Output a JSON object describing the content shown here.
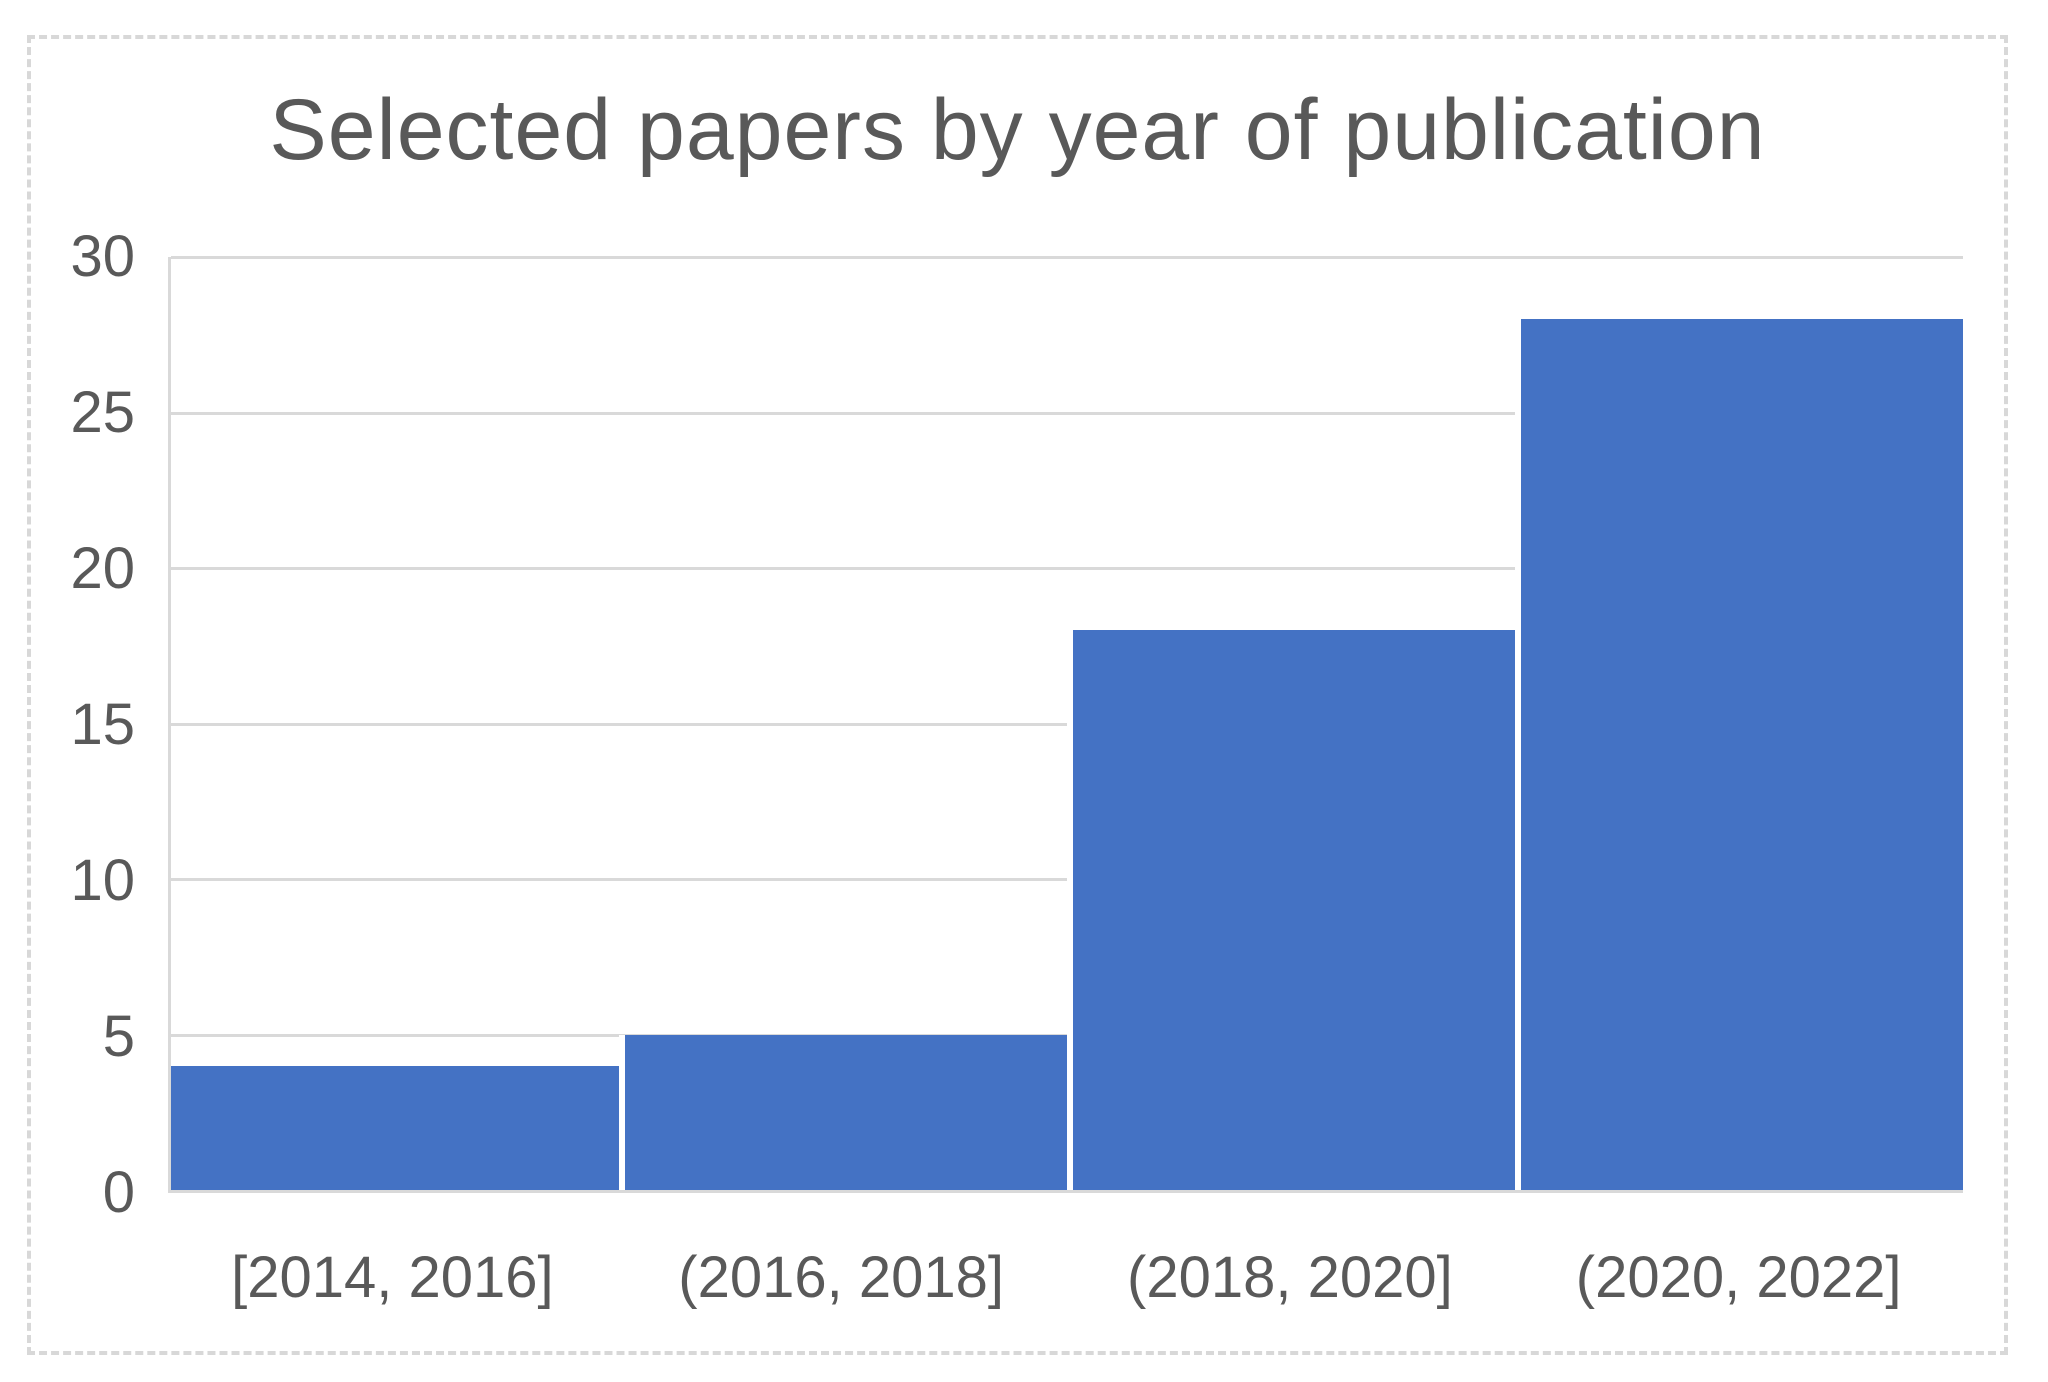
{
  "colors": {
    "bar_fill": "#4472C4",
    "gridline": "#D9D9D9",
    "text": "#595959",
    "frame_border": "#D8D8D8"
  },
  "chart_data": {
    "type": "bar",
    "subtype": "histogram",
    "title": "Selected papers by year of publication",
    "categories": [
      "[2014, 2016]",
      "(2016, 2018]",
      "(2018, 2020]",
      "(2020, 2022]"
    ],
    "values": [
      4,
      5,
      18,
      28
    ],
    "xlabel": "",
    "ylabel": "",
    "ylim": [
      0,
      30
    ],
    "yticks": [
      0,
      5,
      10,
      15,
      20,
      25,
      30
    ],
    "grid": true,
    "legend_position": "none"
  }
}
